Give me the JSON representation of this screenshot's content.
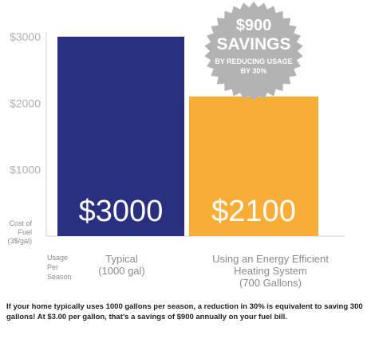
{
  "chart_data": {
    "type": "bar",
    "categories": [
      "Typical (1000 gal)",
      "Using an Energy Efficient Heating System (700 Gallons)"
    ],
    "category_lines": [
      [
        "Typical",
        "(1000 gal)"
      ],
      [
        "Using an Energy Efficient",
        "Heating System",
        "(700 Gallons)"
      ]
    ],
    "values": [
      3000,
      2100
    ],
    "value_labels": [
      "$3000",
      "$2100"
    ],
    "bar_colors": [
      "#2b2f7f",
      "#f8ad37"
    ],
    "yticks": [
      {
        "value": 1000,
        "label": "$1000"
      },
      {
        "value": 2000,
        "label": "$2000"
      },
      {
        "value": 3000,
        "label": "$3000"
      }
    ],
    "ylim": [
      0,
      3000
    ],
    "grid": false,
    "ylabel_lines": [
      "Cost of",
      "Fuel",
      "(3$/gal)"
    ],
    "xlabel_lines": [
      "Usage",
      "Per",
      "Season"
    ],
    "badge": {
      "lines": [
        "$900",
        "SAVINGS",
        "BY REDUCING USAGE",
        "BY 30%"
      ],
      "color": "#b3b3b3"
    }
  },
  "footnote": "If your home typically uses 1000 gallons per season, a reduction in 30% is equivalent to saving 300 gallons! At $3.00 per gallon, that’s a savings of $900 annually on your fuel bill."
}
